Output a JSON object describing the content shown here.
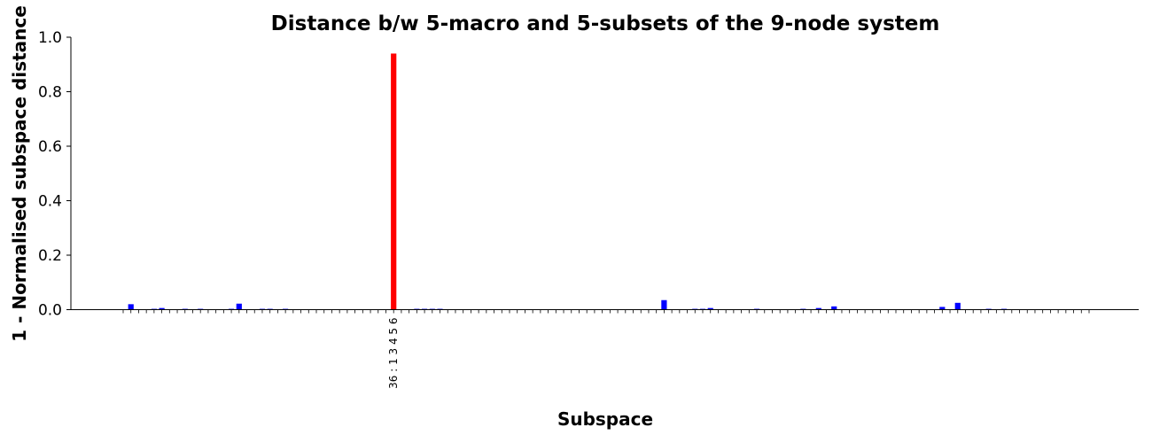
{
  "chart_data": {
    "type": "bar",
    "title": "Distance b/w 5-macro and 5-subsets of the 9-node system",
    "xlabel": "Subspace",
    "ylabel": "1 - Normalised subspace distance",
    "ylim": [
      0,
      1.0
    ],
    "yticks": [
      "0.0",
      "0.2",
      "0.4",
      "0.6",
      "0.8",
      "1.0"
    ],
    "xtick_labels": [
      {
        "index": 35,
        "label": "36 : 1 3 4 5 6"
      }
    ],
    "bar_count": 126,
    "highlight_index": 35,
    "colors": {
      "default": "#0000ff",
      "highlight": "#ff0000"
    },
    "values": [
      0.0,
      0.02,
      0.0,
      0.0,
      0.003,
      0.006,
      0.0,
      0.0,
      0.003,
      0.0,
      0.003,
      0.0,
      0.0,
      0.0,
      0.003,
      0.022,
      0.0,
      0.0,
      0.003,
      0.003,
      0.0,
      0.003,
      0.0,
      0.0,
      0.0,
      0.0,
      0.0,
      0.0,
      0.0,
      0.0,
      0.0,
      0.0,
      0.0,
      0.0,
      0.0,
      0.94,
      0.0,
      0.0,
      0.003,
      0.003,
      0.003,
      0.003,
      0.0,
      0.0,
      0.0,
      0.0,
      0.0,
      0.0,
      0.0,
      0.0,
      0.0,
      0.0,
      0.0,
      0.0,
      0.0,
      0.0,
      0.0,
      0.0,
      0.0,
      0.0,
      0.0,
      0.0,
      0.0,
      0.0,
      0.0,
      0.0,
      0.0,
      0.0,
      0.0,
      0.0,
      0.035,
      0.0,
      0.0,
      0.0,
      0.003,
      0.003,
      0.006,
      0.0,
      0.0,
      0.0,
      0.0,
      0.0,
      0.003,
      0.0,
      0.0,
      0.0,
      0.0,
      0.0,
      0.003,
      0.0,
      0.006,
      0.0,
      0.012,
      0.0,
      0.0,
      0.0,
      0.0,
      0.0,
      0.0,
      0.0,
      0.0,
      0.0,
      0.0,
      0.0,
      0.0,
      0.0,
      0.01,
      0.0,
      0.025,
      0.0,
      0.0,
      0.0,
      0.003,
      0.0,
      0.003,
      0.0,
      0.0,
      0.0,
      0.0,
      0.0,
      0.0,
      0.0,
      0.0,
      0.0,
      0.0,
      0.0
    ]
  }
}
